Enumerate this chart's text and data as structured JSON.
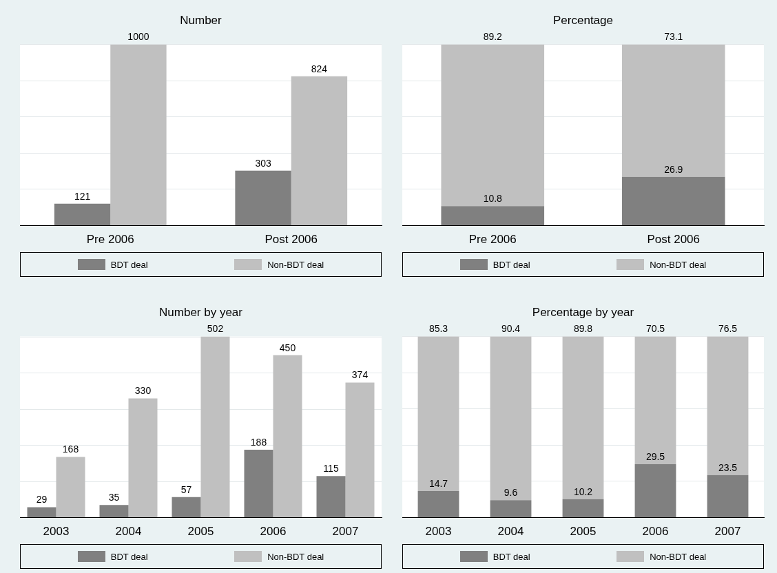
{
  "chart_data": [
    {
      "type": "bar",
      "title": "Number",
      "categories": [
        "Pre 2006",
        "Post 2006"
      ],
      "series": [
        {
          "name": "BDT deal",
          "color": "#808080",
          "values": [
            121,
            303
          ]
        },
        {
          "name": "Non-BDT deal",
          "color": "#c0c0c0",
          "values": [
            1000,
            824
          ]
        }
      ],
      "ylim": [
        0,
        1000
      ],
      "yticks": [
        {
          "value": 0,
          "label": null
        },
        {
          "value": 200,
          "label": null
        },
        {
          "value": 400,
          "label": null
        },
        {
          "value": 600,
          "label": null
        },
        {
          "value": 800,
          "label": null
        },
        {
          "value": 1000,
          "label": null
        }
      ],
      "tick_labels": "x",
      "grid": "y",
      "legend": "bottom",
      "data_labels": true
    },
    {
      "type": "bar",
      "title": "Percentage",
      "stacked": true,
      "categories": [
        "Pre 2006",
        "Post 2006"
      ],
      "series": [
        {
          "name": "BDT deal",
          "color": "#808080",
          "values": [
            10.8,
            26.9
          ]
        },
        {
          "name": "Non-BDT deal",
          "color": "#c0c0c0",
          "values": [
            89.2,
            73.1
          ]
        }
      ],
      "ylim": [
        0,
        100
      ],
      "yticks": [
        {
          "value": 0,
          "label": null
        },
        {
          "value": 20,
          "label": null
        },
        {
          "value": 40,
          "label": null
        },
        {
          "value": 60,
          "label": null
        },
        {
          "value": 80,
          "label": null
        },
        {
          "value": 100,
          "label": null
        }
      ],
      "tick_labels": "x",
      "grid": "y",
      "legend": "bottom",
      "data_labels": true
    },
    {
      "type": "bar",
      "title": "Number by year",
      "categories": [
        "2003",
        "2004",
        "2005",
        "2006",
        "2007"
      ],
      "series": [
        {
          "name": "BDT deal",
          "color": "#808080",
          "values": [
            29,
            35,
            57,
            188,
            115
          ]
        },
        {
          "name": "Non-BDT deal",
          "color": "#c0c0c0",
          "values": [
            168,
            330,
            502,
            450,
            374
          ]
        }
      ],
      "ylim": [
        0,
        502
      ],
      "yticks": [
        {
          "value": 0,
          "label": null
        },
        {
          "value": 100,
          "label": null
        },
        {
          "value": 200,
          "label": null
        },
        {
          "value": 300,
          "label": null
        },
        {
          "value": 400,
          "label": null
        },
        {
          "value": 500,
          "label": null
        }
      ],
      "tick_labels": "x",
      "grid": "y",
      "legend": "bottom",
      "data_labels": true
    },
    {
      "type": "bar",
      "title": "Percentage by year",
      "stacked": true,
      "categories": [
        "2003",
        "2004",
        "2005",
        "2006",
        "2007"
      ],
      "series": [
        {
          "name": "BDT deal",
          "color": "#808080",
          "values": [
            14.7,
            9.6,
            10.2,
            29.5,
            23.5
          ]
        },
        {
          "name": "Non-BDT deal",
          "color": "#c0c0c0",
          "values": [
            85.3,
            90.4,
            89.8,
            70.5,
            76.5
          ]
        }
      ],
      "ylim": [
        0,
        100
      ],
      "yticks": [
        {
          "value": 0,
          "label": null
        },
        {
          "value": 20,
          "label": null
        },
        {
          "value": 40,
          "label": null
        },
        {
          "value": 60,
          "label": null
        },
        {
          "value": 80,
          "label": null
        },
        {
          "value": 100,
          "label": null
        }
      ],
      "tick_labels": "x",
      "grid": "y",
      "legend": "bottom",
      "data_labels": true
    }
  ]
}
